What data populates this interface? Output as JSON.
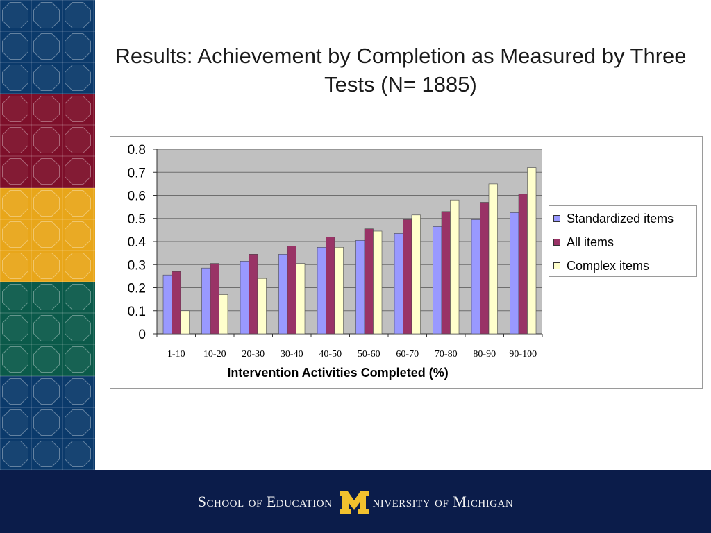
{
  "slide": {
    "title": "Results: Achievement by Completion as Measured by Three Tests (N= 1885)"
  },
  "footer": {
    "left_text": "School of Education",
    "right_text": "niversity of Michigan",
    "logo_letter": "M"
  },
  "colors": {
    "sidebar_bands": [
      "#0b3a6b",
      "#7d0f2a",
      "#e8a61a",
      "#0b5a4a",
      "#0b3a6b"
    ],
    "footer_bg": "#0b1c4a",
    "plot_bg": "#c0c0c0",
    "logo": "#f2c12e"
  },
  "chart_data": {
    "type": "bar",
    "categories": [
      "1-10",
      "10-20",
      "20-30",
      "30-40",
      "40-50",
      "50-60",
      "60-70",
      "70-80",
      "80-90",
      "90-100"
    ],
    "series": [
      {
        "name": "Standardized items",
        "color": "#9999ff",
        "values": [
          0.255,
          0.285,
          0.315,
          0.345,
          0.375,
          0.405,
          0.435,
          0.465,
          0.495,
          0.525
        ]
      },
      {
        "name": "All items",
        "color": "#993366",
        "values": [
          0.27,
          0.305,
          0.345,
          0.38,
          0.42,
          0.455,
          0.495,
          0.53,
          0.57,
          0.605
        ]
      },
      {
        "name": "Complex items",
        "color": "#ffffcc",
        "values": [
          0.1,
          0.17,
          0.24,
          0.305,
          0.375,
          0.445,
          0.515,
          0.58,
          0.65,
          0.72
        ]
      }
    ],
    "yticks": [
      "0",
      "0.1",
      "0.2",
      "0.3",
      "0.4",
      "0.5",
      "0.6",
      "0.7",
      "0.8"
    ],
    "ylim": [
      0,
      0.8
    ],
    "xlabel": "Intervention Activities Completed (%)",
    "ylabel": "",
    "grid": true,
    "legend_position": "right"
  }
}
